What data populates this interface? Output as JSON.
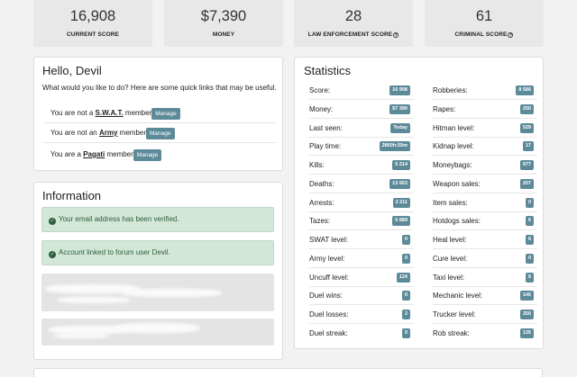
{
  "summary": [
    {
      "value": "16,908",
      "label": "CURRENT SCORE",
      "help": false
    },
    {
      "value": "$7,390",
      "label": "MONEY",
      "help": false
    },
    {
      "value": "28",
      "label": "LAW ENFORCEMENT SCORE",
      "help": true
    },
    {
      "value": "61",
      "label": "CRIMINAL SCORE",
      "help": true
    }
  ],
  "hello": {
    "title": "Hello, Devil",
    "intro": "What would you like to do? Here are some quick links that may be useful.",
    "rows": [
      {
        "prefix": "You are not a",
        "group": "S.W.A.T.",
        "suffix": "member",
        "button": "Manage"
      },
      {
        "prefix": "You are not an",
        "group": "Army",
        "suffix": "member",
        "button": "Manage"
      },
      {
        "prefix": "You are a",
        "group": "Pagati",
        "suffix": "member",
        "button": "Manage"
      }
    ]
  },
  "information": {
    "title": "Information",
    "alerts": [
      "Your email address has been verified.",
      "Account linked to forum user Devil."
    ]
  },
  "statistics": {
    "title": "Statistics",
    "left": [
      {
        "label": "Score:",
        "value": "16 908"
      },
      {
        "label": "Money:",
        "value": "$7 390"
      },
      {
        "label": "Last seen:",
        "value": "Today"
      },
      {
        "label": "Play time:",
        "value": "2860h:59m"
      },
      {
        "label": "Kills:",
        "value": "5 214"
      },
      {
        "label": "Deaths:",
        "value": "13 653"
      },
      {
        "label": "Arrests:",
        "value": "3 211"
      },
      {
        "label": "Tazes:",
        "value": "5 889"
      },
      {
        "label": "SWAT level:",
        "value": "0"
      },
      {
        "label": "Army level:",
        "value": "0"
      },
      {
        "label": "Uncuff level:",
        "value": "124"
      },
      {
        "label": "Duel wins:",
        "value": "0"
      },
      {
        "label": "Duel losses:",
        "value": "2"
      },
      {
        "label": "Duel streak:",
        "value": "0"
      }
    ],
    "right": [
      {
        "label": "Robberies:",
        "value": "8 586"
      },
      {
        "label": "Rapes:",
        "value": "250"
      },
      {
        "label": "Hitman level:",
        "value": "529"
      },
      {
        "label": "Kidnap level:",
        "value": "17"
      },
      {
        "label": "Moneybags:",
        "value": "977"
      },
      {
        "label": "Weapon sales:",
        "value": "207"
      },
      {
        "label": "Item sales:",
        "value": "0"
      },
      {
        "label": "Hotdogs sales:",
        "value": "6"
      },
      {
        "label": "Heal level:",
        "value": "6"
      },
      {
        "label": "Cure level:",
        "value": "0"
      },
      {
        "label": "Taxi level:",
        "value": "6"
      },
      {
        "label": "Mechanic level:",
        "value": "145"
      },
      {
        "label": "Trucker level:",
        "value": "250"
      },
      {
        "label": "Rob streak:",
        "value": "135"
      }
    ]
  }
}
